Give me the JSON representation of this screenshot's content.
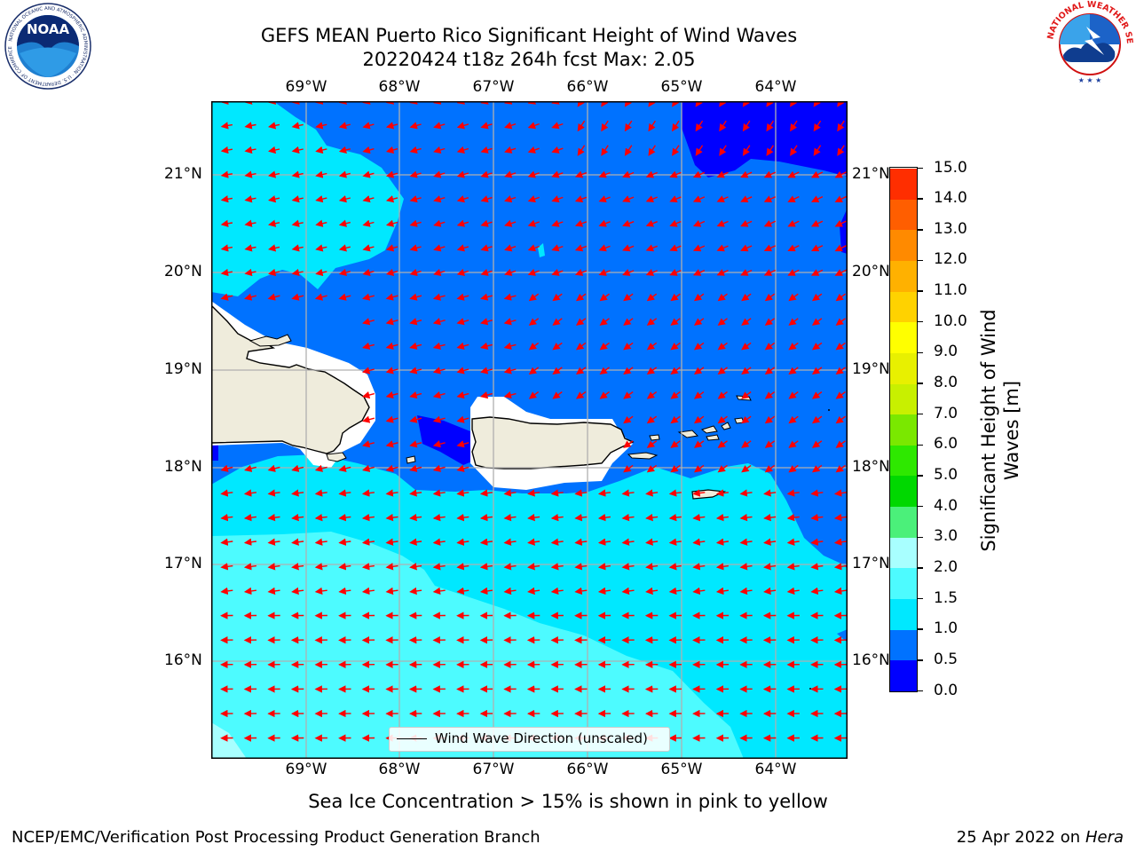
{
  "title": {
    "line1": "GEFS MEAN Puerto Rico Significant Height of Wind Waves",
    "line2": "20220424 t18z 264h fcst   Max: 2.05"
  },
  "map": {
    "lon_labels": [
      "69°W",
      "68°W",
      "67°W",
      "66°W",
      "65°W",
      "64°W"
    ],
    "lat_labels": [
      "21°N",
      "20°N",
      "19°N",
      "18°N",
      "17°N",
      "16°N"
    ],
    "legend_text": "Wind Wave Direction (unscaled)",
    "colors": {
      "land": "#efecdc",
      "white_area": "#ffffff",
      "arrow": "#ff0000",
      "grid": "#b0b0b0"
    }
  },
  "colorbar": {
    "label": "Significant Height of Wind Waves [m]",
    "ticks": [
      "0.0",
      "0.5",
      "1.0",
      "1.5",
      "2.0",
      "3.0",
      "4.0",
      "5.0",
      "6.0",
      "7.0",
      "8.0",
      "9.0",
      "10.0",
      "11.0",
      "12.0",
      "13.0",
      "14.0",
      "15.0"
    ],
    "colors": [
      "#0000ff",
      "#0072ff",
      "#00e8ff",
      "#4dfbff",
      "#a8ffff",
      "#4bf07a",
      "#00d800",
      "#2ee800",
      "#7ae800",
      "#c8f000",
      "#e8f000",
      "#ffff00",
      "#ffd200",
      "#ffb100",
      "#ff8a00",
      "#ff5e00",
      "#ff2e00",
      "#ff0000"
    ]
  },
  "subtitle": "Sea Ice Concentration > 15% is shown in pink to yellow",
  "footer": {
    "left": "NCEP/EMC/Verification Post Processing Product Generation Branch",
    "right_prefix": "25 Apr 2022 on ",
    "right_italic": "Hera"
  },
  "logos": {
    "noaa_text": "NOAA",
    "noaa_ring": "NATIONAL OCEANIC AND ATMOSPHERIC ADMINISTRATION · U.S. DEPARTMENT OF COMMERCE",
    "nws_ring": "NATIONAL WEATHER SERVICE"
  }
}
